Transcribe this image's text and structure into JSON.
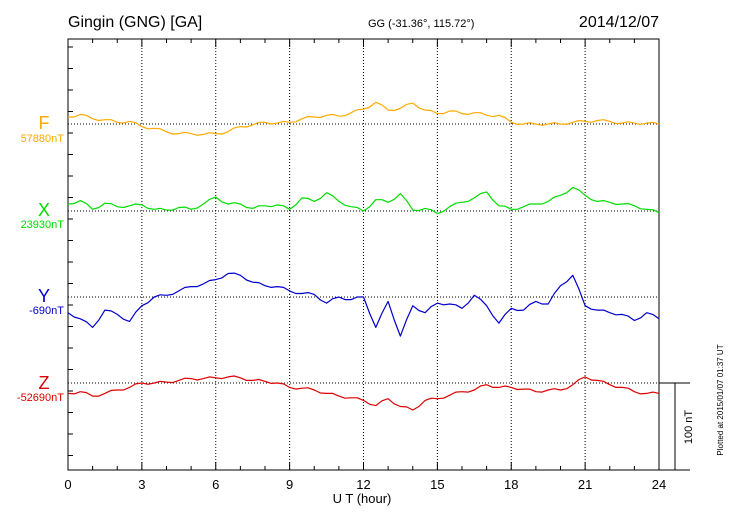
{
  "chart_data": {
    "type": "line",
    "station": "Gingin (GNG)  [GA]",
    "coordinates": "GG (-31.36°, 115.72°)",
    "date": "2014/12/07",
    "xlabel": "U T (hour)",
    "xlim": [
      0,
      24
    ],
    "x_ticks": [
      "0",
      "3",
      "6",
      "9",
      "12",
      "15",
      "18",
      "21",
      "24"
    ],
    "scale_bar": {
      "value": 100,
      "label": "100 nT"
    },
    "footnote": "Plotted at 2015/01/07 01:37 UT",
    "series": [
      {
        "name": "F",
        "baseline_label": "57880nT",
        "baseline": 57880,
        "color": "#ffaa00",
        "x": [
          0,
          0.5,
          1,
          1.5,
          2,
          2.5,
          3,
          3.5,
          4,
          4.5,
          5,
          5.5,
          6,
          6.5,
          7,
          7.5,
          8,
          8.5,
          9,
          9.5,
          10,
          10.5,
          11,
          11.5,
          12,
          12.5,
          13,
          13.5,
          14,
          14.5,
          15,
          15.5,
          16,
          16.5,
          17,
          17.5,
          18,
          18.5,
          19,
          19.5,
          20,
          20.5,
          21,
          21.5,
          22,
          22.5,
          23,
          23.5,
          24
        ],
        "y": [
          8,
          11,
          6,
          5,
          2,
          3,
          -3,
          -5,
          -9,
          -11,
          -11,
          -12,
          -11,
          -9,
          -3,
          -1,
          2,
          1,
          2,
          6,
          8,
          10,
          9,
          13,
          17,
          25,
          16,
          18,
          24,
          16,
          12,
          15,
          12,
          13,
          10,
          10,
          2,
          0,
          0,
          0,
          0,
          2,
          3,
          4,
          3,
          1,
          1,
          1,
          0
        ]
      },
      {
        "name": "X",
        "baseline_label": "23930nT",
        "baseline": 23930,
        "color": "#00dd00",
        "x": [
          0,
          0.5,
          1,
          1.5,
          2,
          2.5,
          3,
          3.5,
          4,
          4.5,
          5,
          5.5,
          6,
          6.5,
          7,
          7.5,
          8,
          8.5,
          9,
          9.5,
          10,
          10.5,
          11,
          11.5,
          12,
          12.5,
          13,
          13.5,
          14,
          14.5,
          15,
          15.5,
          16,
          16.5,
          17,
          17.5,
          18,
          18.5,
          19,
          19.5,
          20,
          20.5,
          21,
          21.5,
          22,
          22.5,
          23,
          23.5,
          24
        ],
        "y": [
          8,
          12,
          2,
          9,
          5,
          6,
          7,
          2,
          1,
          4,
          2,
          8,
          16,
          8,
          8,
          3,
          6,
          7,
          2,
          15,
          11,
          21,
          11,
          5,
          0,
          13,
          10,
          20,
          1,
          3,
          -3,
          5,
          10,
          15,
          22,
          6,
          2,
          5,
          8,
          11,
          18,
          27,
          18,
          11,
          10,
          8,
          6,
          2,
          -2
        ]
      },
      {
        "name": "Y",
        "baseline_label": "-690nT",
        "baseline": -690,
        "color": "#0000cc",
        "x": [
          0,
          0.5,
          1,
          1.5,
          2,
          2.5,
          3,
          3.5,
          4,
          4.5,
          5,
          5.5,
          6,
          6.5,
          7,
          7.5,
          8,
          8.5,
          9,
          9.5,
          10,
          10.5,
          11,
          11.5,
          12,
          12.5,
          13,
          13.5,
          14,
          14.5,
          15,
          15.5,
          16,
          16.5,
          17,
          17.5,
          18,
          18.5,
          19,
          19.5,
          20,
          20.5,
          21,
          21.5,
          22,
          22.5,
          23,
          23.5,
          24
        ],
        "y": [
          -18,
          -25,
          -35,
          -15,
          -20,
          -28,
          -10,
          0,
          2,
          7,
          12,
          15,
          20,
          27,
          25,
          17,
          13,
          12,
          7,
          4,
          3,
          -7,
          0,
          -3,
          0,
          -35,
          -5,
          -45,
          -10,
          -18,
          -7,
          -8,
          -13,
          2,
          -10,
          -30,
          -13,
          -15,
          -5,
          -8,
          13,
          25,
          -10,
          -15,
          -18,
          -20,
          -27,
          -18,
          -25
        ]
      },
      {
        "name": "Z",
        "baseline_label": "-52690nT",
        "baseline": -52690,
        "color": "#dd0000",
        "x": [
          0,
          0.5,
          1,
          1.5,
          2,
          2.5,
          3,
          3.5,
          4,
          4.5,
          5,
          5.5,
          6,
          6.5,
          7,
          7.5,
          8,
          8.5,
          9,
          9.5,
          10,
          10.5,
          11,
          11.5,
          12,
          12.5,
          13,
          13.5,
          14,
          14.5,
          15,
          15.5,
          16,
          16.5,
          17,
          17.5,
          18,
          18.5,
          19,
          19.5,
          20,
          20.5,
          21,
          21.5,
          22,
          22.5,
          23,
          23.5,
          24
        ],
        "y": [
          -12,
          -10,
          -15,
          -12,
          -8,
          -5,
          0,
          0,
          1,
          3,
          5,
          5,
          6,
          7,
          6,
          3,
          2,
          0,
          -5,
          -6,
          -8,
          -12,
          -15,
          -17,
          -20,
          -26,
          -18,
          -27,
          -31,
          -20,
          -18,
          -14,
          -10,
          -8,
          -2,
          -5,
          -5,
          -7,
          -10,
          -8,
          -8,
          -2,
          7,
          3,
          -2,
          -5,
          -10,
          -12,
          -12
        ]
      }
    ]
  }
}
